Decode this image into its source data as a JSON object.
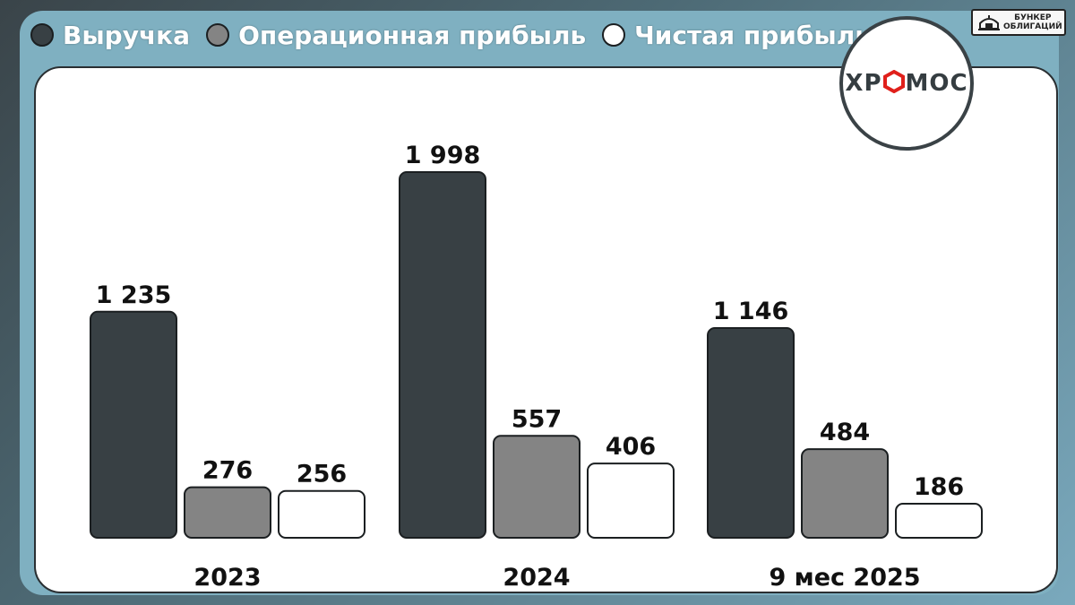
{
  "legend": {
    "items": [
      {
        "label": "Выручка",
        "color": "#384044"
      },
      {
        "label": "Операционная прибыль",
        "color": "#848484"
      },
      {
        "label": "Чистая прибыль",
        "color": "#ffffff"
      }
    ]
  },
  "brand": {
    "line1": "БУНКЕР",
    "line2": "ОБЛИГАЦИЙ",
    "icon": "bunker-icon"
  },
  "logo": {
    "text": "ХРОМОС",
    "accent": "#e0201b"
  },
  "chart_data": {
    "type": "bar",
    "categories": [
      "2023",
      "2024",
      "9 мес 2025"
    ],
    "series": [
      {
        "name": "Выручка",
        "values": [
          1235,
          1998,
          1146
        ],
        "labels": [
          "1 235",
          "1 998",
          "1 146"
        ],
        "color": "#384044"
      },
      {
        "name": "Операционная прибыль",
        "values": [
          276,
          557,
          484
        ],
        "labels": [
          "276",
          "557",
          "484"
        ],
        "color": "#848484"
      },
      {
        "name": "Чистая прибыль",
        "values": [
          256,
          406,
          186
        ],
        "labels": [
          "256",
          "406",
          "186"
        ],
        "color": "#ffffff"
      }
    ],
    "title": "",
    "xlabel": "",
    "ylabel": "",
    "ylim": [
      0,
      1998
    ],
    "grid": false,
    "legend_position": "top-left"
  }
}
